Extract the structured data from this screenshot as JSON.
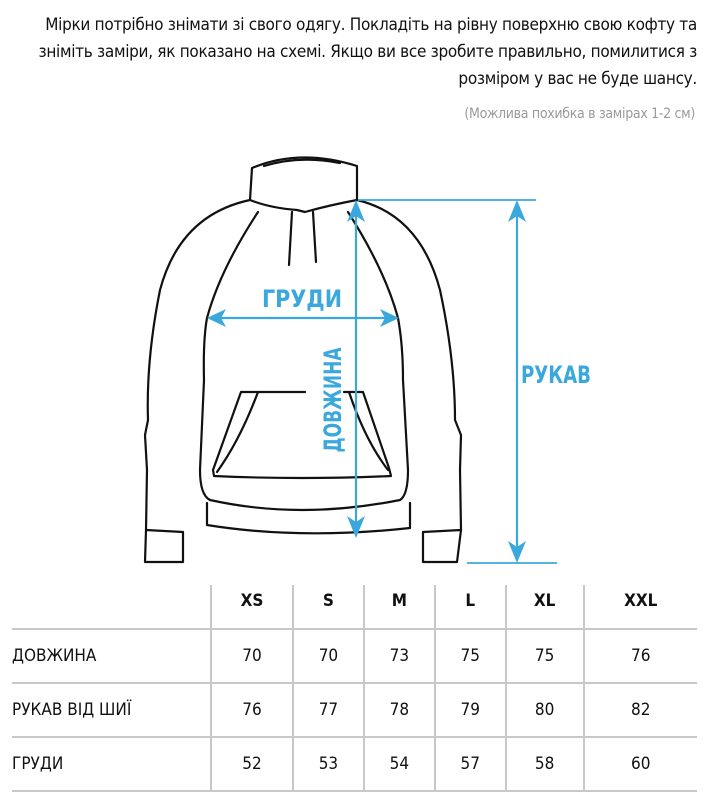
{
  "intro": "Мірки потрібно знімати зі свого одягу. Покладіть на рівну поверхню свою кофту та зніміть заміри, як показано на схемі. Якщо ви все зробите правильно, помилитися з розміром у вас не буде шансу.",
  "note": "(Можлива похибка в замірах 1-2 см)",
  "diagram": {
    "accent_color": "#3aa8dc",
    "labels": {
      "chest": "ГРУДИ",
      "length": "ДОВЖИНА",
      "sleeve": "РУКАВ"
    }
  },
  "table": {
    "headers": [
      "",
      "XS",
      "S",
      "M",
      "L",
      "XL",
      "XXL"
    ],
    "rows": [
      {
        "label": "ДОВЖИНА",
        "values": [
          "70",
          "70",
          "73",
          "75",
          "75",
          "76"
        ]
      },
      {
        "label": "РУКАВ ВІД ШИЇ",
        "values": [
          "76",
          "77",
          "78",
          "79",
          "80",
          "82"
        ]
      },
      {
        "label": "ГРУДИ",
        "values": [
          "52",
          "53",
          "54",
          "57",
          "58",
          "60"
        ]
      }
    ]
  }
}
